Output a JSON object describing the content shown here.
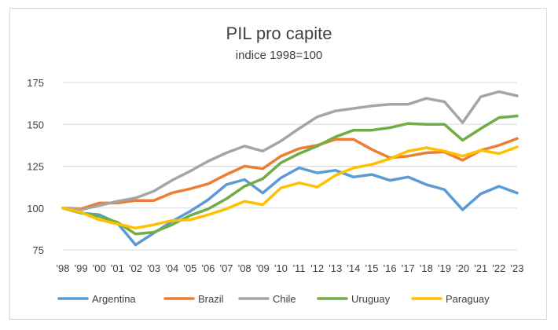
{
  "chart_data": {
    "type": "line",
    "title": "PIL pro capite",
    "subtitle": "indice 1998=100",
    "xlabel": "",
    "ylabel": "",
    "ylim": [
      75,
      175
    ],
    "yticks": [
      75,
      100,
      125,
      150,
      175
    ],
    "grid": true,
    "legend": "bottom",
    "categories": [
      "'98",
      "'99",
      "'00",
      "'01",
      "'02",
      "'03",
      "'04",
      "'05",
      "'06",
      "'07",
      "'08",
      "'09",
      "'10",
      "'11",
      "'12",
      "'13",
      "'14",
      "'15",
      "'16",
      "'17",
      "'18",
      "'19",
      "'20",
      "'21",
      "'22",
      "'23"
    ],
    "series": [
      {
        "name": "Argentina",
        "color": "#5b9bd5",
        "values": [
          100,
          97,
          96,
          91,
          78,
          85,
          92,
          98,
          105,
          114,
          117,
          109,
          118,
          124,
          121,
          122.5,
          118.5,
          120,
          116.5,
          118.5,
          114,
          111,
          99,
          108.5,
          113,
          109
        ]
      },
      {
        "name": "Brazil",
        "color": "#ed7d31",
        "values": [
          100,
          99.5,
          103,
          103,
          104.5,
          104.5,
          109,
          111.5,
          114.5,
          120,
          125,
          123.5,
          131,
          135.5,
          137.5,
          141,
          141,
          135,
          130,
          131,
          133,
          133.5,
          128.5,
          134.5,
          137.5,
          141.5
        ]
      },
      {
        "name": "Chile",
        "color": "#a5a5a5",
        "values": [
          100,
          99,
          101.5,
          104,
          106,
          110,
          116.5,
          122,
          128,
          133,
          137,
          134,
          140,
          147.5,
          154.5,
          158,
          159.5,
          161,
          162,
          162,
          165.5,
          163.5,
          151,
          166.5,
          169.5,
          167
        ]
      },
      {
        "name": "Uruguay",
        "color": "#70ad47",
        "values": [
          100,
          97,
          95,
          91.5,
          84.5,
          85.5,
          90,
          95.5,
          99.5,
          105.5,
          113,
          117.5,
          127,
          132.5,
          137,
          142.5,
          146.5,
          146.5,
          148,
          150.5,
          150,
          150,
          140.5,
          147.5,
          154,
          155
        ]
      },
      {
        "name": "Paraguay",
        "color": "#ffc000",
        "values": [
          100,
          97.5,
          93,
          90.5,
          88,
          90,
          92.5,
          93,
          96,
          99.5,
          104,
          102,
          112,
          115,
          112.5,
          119.5,
          124,
          126,
          129.5,
          134,
          136,
          134,
          131,
          134.5,
          132.5,
          136.5
        ]
      }
    ]
  }
}
